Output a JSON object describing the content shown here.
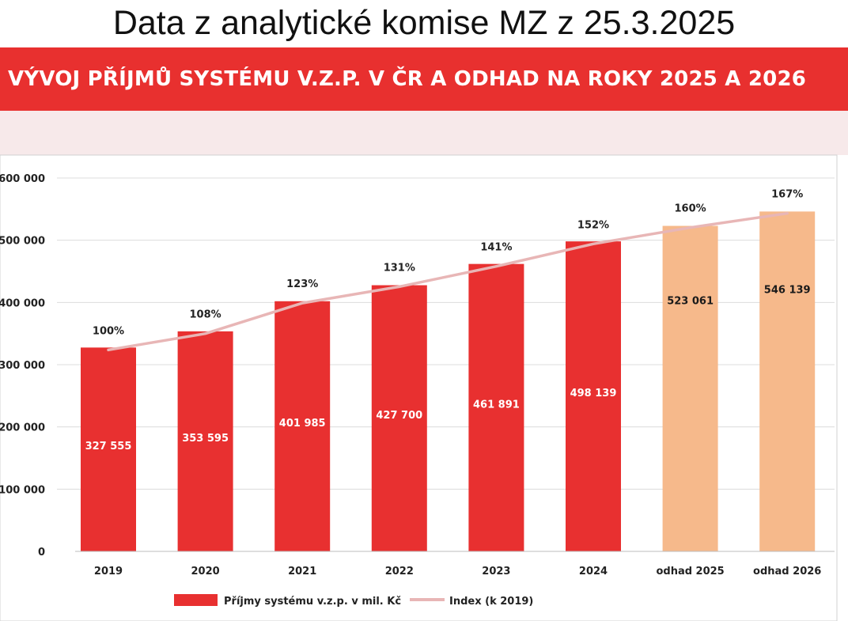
{
  "header": {
    "title": "Data z analytické komise MZ z 25.3.2025",
    "subtitle": "VÝVOJ PŘÍJMŮ SYSTÉMU V.Z.P. V ČR A ODHAD NA ROKY 2025 A 2026"
  },
  "colors": {
    "banner": "#e8302f",
    "pink_band": "#f7e9ea",
    "bar_actual": "#e83030",
    "bar_estimate": "#f6b98b",
    "index_line": "#e8b6b6"
  },
  "chart_data": {
    "type": "bar",
    "title": "VÝVOJ PŘÍJMŮ SYSTÉMU V.Z.P. V ČR A ODHAD NA ROKY 2025 A 2026",
    "categories": [
      "2019",
      "2020",
      "2021",
      "2022",
      "2023",
      "2024",
      "odhad 2025",
      "odhad 2026"
    ],
    "series": [
      {
        "name": "Příjmy systému v.z.p. v mil. Kč",
        "kind": "bar",
        "values": [
          327555,
          353595,
          401985,
          427700,
          461891,
          498139,
          523061,
          546139
        ],
        "labels": [
          "327 555",
          "353 595",
          "401 985",
          "427 700",
          "461 891",
          "498 139",
          "523 061",
          "546 139"
        ],
        "estimate": [
          false,
          false,
          false,
          false,
          false,
          false,
          true,
          true
        ]
      },
      {
        "name": "Index (k 2019)",
        "kind": "line",
        "values": [
          100,
          108,
          123,
          131,
          141,
          152,
          160,
          167
        ],
        "labels": [
          "100%",
          "108%",
          "123%",
          "131%",
          "141%",
          "152%",
          "160%",
          "167%"
        ]
      }
    ],
    "ylim": [
      0,
      600000
    ],
    "yticks": [
      0,
      100000,
      200000,
      300000,
      400000,
      500000,
      600000
    ],
    "ytick_labels": [
      "0",
      "100 000",
      "200 000",
      "300 000",
      "400 000",
      "500 000",
      "600 000"
    ],
    "grid": true,
    "legend": "bottom-center",
    "xlabel": "",
    "ylabel": ""
  }
}
